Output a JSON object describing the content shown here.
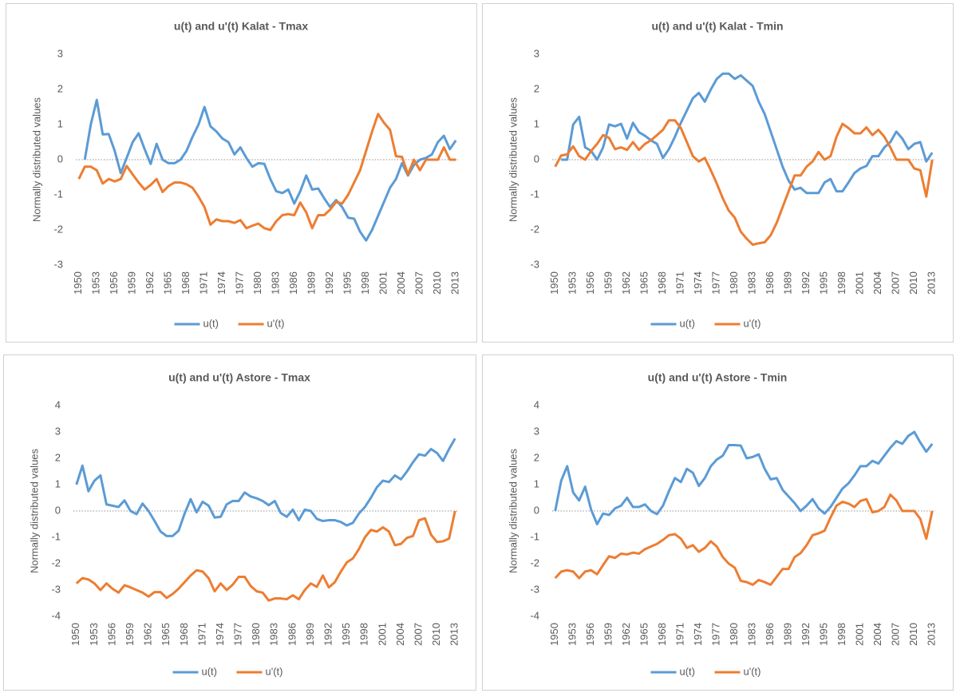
{
  "chart_data": [
    {
      "type": "line",
      "title": "u(t) and u'(t) Kalat - Tmax",
      "y_label": "Normally distributed values",
      "categories": [
        "1950",
        null,
        null,
        "1953",
        null,
        null,
        "1956",
        null,
        null,
        "1959",
        null,
        null,
        "1962",
        null,
        null,
        "1965",
        null,
        null,
        "1968",
        null,
        null,
        "1971",
        null,
        null,
        "1974",
        null,
        null,
        "1977",
        null,
        null,
        "1980",
        null,
        null,
        "1983",
        null,
        null,
        "1986",
        null,
        null,
        "1989",
        null,
        null,
        "1992",
        null,
        null,
        "1995",
        null,
        null,
        "1998",
        null,
        null,
        "2001",
        null,
        null,
        "2004",
        null,
        null,
        "2007",
        null,
        null,
        "2010",
        null,
        null,
        "2013"
      ],
      "ylim": [
        -3,
        3
      ],
      "yticks": [
        -3,
        -2,
        -1,
        0,
        1,
        2,
        3
      ],
      "legend": "bottom",
      "series": [
        {
          "name": "u(t)",
          "color": "#5b9bd5",
          "values": [
            null,
            0,
            1.0,
            1.7,
            0.72,
            0.73,
            0.25,
            -0.38,
            0.05,
            0.5,
            0.75,
            0.3,
            -0.12,
            0.45,
            0.0,
            -0.1,
            -0.1,
            0.0,
            0.25,
            0.65,
            1.0,
            1.5,
            0.95,
            0.8,
            0.6,
            0.5,
            0.15,
            0.35,
            0.05,
            -0.2,
            -0.1,
            -0.12,
            -0.55,
            -0.9,
            -0.95,
            -0.85,
            -1.25,
            -0.9,
            -0.45,
            -0.85,
            -0.82,
            -1.1,
            -1.35,
            -1.15,
            -1.35,
            -1.65,
            -1.68,
            -2.05,
            -2.3,
            -2.0,
            -1.6,
            -1.2,
            -0.8,
            -0.55,
            -0.1,
            -0.45,
            -0.15,
            0.0,
            0.05,
            0.15,
            0.5,
            0.68,
            0.3,
            0.55
          ]
        },
        {
          "name": "u'(t)",
          "color": "#ed7d31",
          "values": [
            -0.55,
            -0.2,
            -0.2,
            -0.3,
            -0.68,
            -0.55,
            -0.62,
            -0.55,
            -0.18,
            -0.42,
            -0.65,
            -0.85,
            -0.72,
            -0.55,
            -0.92,
            -0.75,
            -0.65,
            -0.65,
            -0.7,
            -0.8,
            -1.05,
            -1.35,
            -1.85,
            -1.7,
            -1.75,
            -1.75,
            -1.8,
            -1.72,
            -1.95,
            -1.88,
            -1.82,
            -1.95,
            -2.0,
            -1.75,
            -1.58,
            -1.55,
            -1.58,
            -1.22,
            -1.5,
            -1.95,
            -1.58,
            -1.58,
            -1.42,
            -1.2,
            -1.25,
            -1.0,
            -0.65,
            -0.3,
            0.25,
            0.8,
            1.3,
            1.05,
            0.85,
            0.1,
            0.08,
            -0.42,
            0.0,
            -0.3,
            0.0,
            0.0,
            0.0,
            0.35,
            0.0,
            0.0
          ]
        }
      ]
    },
    {
      "type": "line",
      "title": "u(t) and u'(t) Kalat - Tmin",
      "y_label": "Normally distributed values",
      "categories": [
        "1950",
        null,
        null,
        "1953",
        null,
        null,
        "1956",
        null,
        null,
        "1959",
        null,
        null,
        "1962",
        null,
        null,
        "1965",
        null,
        null,
        "1968",
        null,
        null,
        "1971",
        null,
        null,
        "1974",
        null,
        null,
        "1977",
        null,
        null,
        "1980",
        null,
        null,
        "1983",
        null,
        null,
        "1986",
        null,
        null,
        "1989",
        null,
        null,
        "1992",
        null,
        null,
        "1995",
        null,
        null,
        "1998",
        null,
        null,
        "2001",
        null,
        null,
        "2004",
        null,
        null,
        "2007",
        null,
        null,
        "2010",
        null,
        null,
        "2013"
      ],
      "ylim": [
        -3,
        3
      ],
      "yticks": [
        -3,
        -2,
        -1,
        0,
        1,
        2,
        3
      ],
      "legend": "bottom",
      "series": [
        {
          "name": "u(t)",
          "color": "#5b9bd5",
          "values": [
            null,
            0,
            0,
            1.0,
            1.22,
            0.35,
            0.25,
            0.0,
            0.35,
            1.0,
            0.95,
            1.02,
            0.6,
            1.05,
            0.78,
            0.68,
            0.55,
            0.45,
            0.05,
            0.3,
            0.65,
            1.05,
            1.4,
            1.75,
            1.9,
            1.65,
            2.0,
            2.3,
            2.45,
            2.45,
            2.3,
            2.4,
            2.25,
            2.1,
            1.65,
            1.3,
            0.8,
            0.3,
            -0.2,
            -0.6,
            -0.85,
            -0.8,
            -0.95,
            -0.95,
            -0.95,
            -0.65,
            -0.55,
            -0.9,
            -0.9,
            -0.65,
            -0.38,
            -0.25,
            -0.18,
            0.1,
            0.1,
            0.35,
            0.5,
            0.8,
            0.6,
            0.3,
            0.45,
            0.5,
            -0.05,
            0.2
          ]
        },
        {
          "name": "u'(t)",
          "color": "#ed7d31",
          "values": [
            -0.2,
            0.12,
            0.15,
            0.38,
            0.1,
            0.0,
            0.25,
            0.45,
            0.7,
            0.62,
            0.3,
            0.35,
            0.28,
            0.5,
            0.28,
            0.45,
            0.55,
            0.7,
            0.85,
            1.12,
            1.12,
            0.9,
            0.5,
            0.1,
            -0.05,
            0.05,
            -0.3,
            -0.68,
            -1.1,
            -1.45,
            -1.65,
            -2.05,
            -2.25,
            -2.42,
            -2.38,
            -2.35,
            -2.15,
            -1.8,
            -1.35,
            -0.9,
            -0.45,
            -0.45,
            -0.2,
            -0.05,
            0.22,
            0.0,
            0.1,
            0.65,
            1.02,
            0.9,
            0.75,
            0.75,
            0.92,
            0.7,
            0.85,
            0.65,
            0.35,
            0.0,
            0.0,
            0.0,
            -0.25,
            -0.3,
            -1.05,
            0.0
          ]
        }
      ]
    },
    {
      "type": "line",
      "title": "u(t) and u'(t) Astore - Tmax",
      "y_label": "Normally distributed values",
      "categories": [
        "1950",
        null,
        null,
        "1953",
        null,
        null,
        "1956",
        null,
        null,
        "1959",
        null,
        null,
        "1962",
        null,
        null,
        "1965",
        null,
        null,
        "1968",
        null,
        null,
        "1971",
        null,
        null,
        "1974",
        null,
        null,
        "1977",
        null,
        null,
        "1980",
        null,
        null,
        "1983",
        null,
        null,
        "1986",
        null,
        null,
        "1989",
        null,
        null,
        "1992",
        null,
        null,
        "1995",
        null,
        null,
        "1998",
        null,
        null,
        "2001",
        null,
        null,
        "2004",
        null,
        null,
        "2007",
        null,
        null,
        "2010",
        null,
        null,
        "2013"
      ],
      "ylim": [
        -4,
        4
      ],
      "yticks": [
        -4,
        -3,
        -2,
        -1,
        0,
        1,
        2,
        3,
        4
      ],
      "legend": "bottom",
      "series": [
        {
          "name": "u(t)",
          "color": "#5b9bd5",
          "values": [
            1.0,
            1.72,
            0.75,
            1.15,
            1.35,
            0.25,
            0.2,
            0.15,
            0.4,
            0.0,
            -0.12,
            0.28,
            0.0,
            -0.38,
            -0.78,
            -0.95,
            -0.95,
            -0.75,
            -0.1,
            0.45,
            -0.05,
            0.35,
            0.2,
            -0.25,
            -0.22,
            0.25,
            0.38,
            0.38,
            0.7,
            0.55,
            0.48,
            0.38,
            0.22,
            0.38,
            -0.08,
            -0.22,
            0.05,
            -0.35,
            0.05,
            0.0,
            -0.3,
            -0.38,
            -0.35,
            -0.35,
            -0.42,
            -0.55,
            -0.45,
            -0.1,
            0.15,
            0.5,
            0.9,
            1.15,
            1.1,
            1.35,
            1.2,
            1.5,
            1.85,
            2.15,
            2.1,
            2.35,
            2.2,
            1.9,
            2.35,
            2.75
          ]
        },
        {
          "name": "u'(t)",
          "color": "#ed7d31",
          "values": [
            -2.75,
            -2.55,
            -2.6,
            -2.75,
            -3.0,
            -2.75,
            -2.95,
            -3.1,
            -2.82,
            -2.9,
            -3.0,
            -3.1,
            -3.25,
            -3.08,
            -3.08,
            -3.3,
            -3.15,
            -2.95,
            -2.7,
            -2.45,
            -2.25,
            -2.3,
            -2.55,
            -3.05,
            -2.75,
            -3.0,
            -2.8,
            -2.5,
            -2.5,
            -2.85,
            -3.05,
            -3.1,
            -3.4,
            -3.32,
            -3.32,
            -3.35,
            -3.2,
            -3.35,
            -3.0,
            -2.75,
            -2.88,
            -2.45,
            -2.9,
            -2.7,
            -2.3,
            -1.95,
            -1.8,
            -1.45,
            -1.0,
            -0.72,
            -0.78,
            -0.62,
            -0.78,
            -1.3,
            -1.25,
            -1.02,
            -0.95,
            -0.35,
            -0.28,
            -0.9,
            -1.18,
            -1.15,
            -1.05,
            0.0
          ]
        }
      ]
    },
    {
      "type": "line",
      "title": "u(t) and u'(t) Astore - Tmin",
      "y_label": "Normally distributed values",
      "categories": [
        "1950",
        null,
        null,
        "1953",
        null,
        null,
        "1956",
        null,
        null,
        "1959",
        null,
        null,
        "1962",
        null,
        null,
        "1965",
        null,
        null,
        "1968",
        null,
        null,
        "1971",
        null,
        null,
        "1974",
        null,
        null,
        "1977",
        null,
        null,
        "1980",
        null,
        null,
        "1983",
        null,
        null,
        "1986",
        null,
        null,
        "1989",
        null,
        null,
        "1992",
        null,
        null,
        "1995",
        null,
        null,
        "1998",
        null,
        null,
        "2001",
        null,
        null,
        "2004",
        null,
        null,
        "2007",
        null,
        null,
        "2010",
        null,
        null,
        "2013"
      ],
      "ylim": [
        -4,
        4
      ],
      "yticks": [
        -4,
        -3,
        -2,
        -1,
        0,
        1,
        2,
        3,
        4
      ],
      "legend": "bottom",
      "series": [
        {
          "name": "u(t)",
          "color": "#5b9bd5",
          "values": [
            0.0,
            1.15,
            1.7,
            0.7,
            0.4,
            0.92,
            0.05,
            -0.5,
            -0.1,
            -0.15,
            0.1,
            0.2,
            0.5,
            0.15,
            0.15,
            0.25,
            0.0,
            -0.12,
            0.2,
            0.75,
            1.25,
            1.1,
            1.6,
            1.45,
            0.95,
            1.25,
            1.7,
            1.95,
            2.1,
            2.5,
            2.5,
            2.48,
            2.0,
            2.05,
            2.15,
            1.6,
            1.2,
            1.25,
            0.8,
            0.55,
            0.3,
            0.0,
            0.2,
            0.45,
            0.1,
            -0.1,
            0.15,
            0.5,
            0.85,
            1.05,
            1.35,
            1.7,
            1.7,
            1.9,
            1.8,
            2.1,
            2.4,
            2.65,
            2.55,
            2.85,
            3.0,
            2.6,
            2.25,
            2.55
          ]
        },
        {
          "name": "u'(t)",
          "color": "#ed7d31",
          "values": [
            -2.55,
            -2.3,
            -2.25,
            -2.3,
            -2.55,
            -2.3,
            -2.25,
            -2.4,
            -2.05,
            -1.72,
            -1.78,
            -1.62,
            -1.65,
            -1.58,
            -1.62,
            -1.45,
            -1.35,
            -1.25,
            -1.1,
            -0.92,
            -0.88,
            -1.05,
            -1.4,
            -1.3,
            -1.55,
            -1.4,
            -1.15,
            -1.35,
            -1.75,
            -2.0,
            -2.15,
            -2.65,
            -2.7,
            -2.8,
            -2.62,
            -2.7,
            -2.8,
            -2.5,
            -2.2,
            -2.2,
            -1.75,
            -1.6,
            -1.3,
            -0.92,
            -0.85,
            -0.75,
            -0.25,
            0.2,
            0.35,
            0.28,
            0.15,
            0.38,
            0.45,
            -0.05,
            0.0,
            0.15,
            0.62,
            0.4,
            0.0,
            0.0,
            0.0,
            -0.3,
            -1.05,
            0.0
          ]
        }
      ]
    }
  ]
}
